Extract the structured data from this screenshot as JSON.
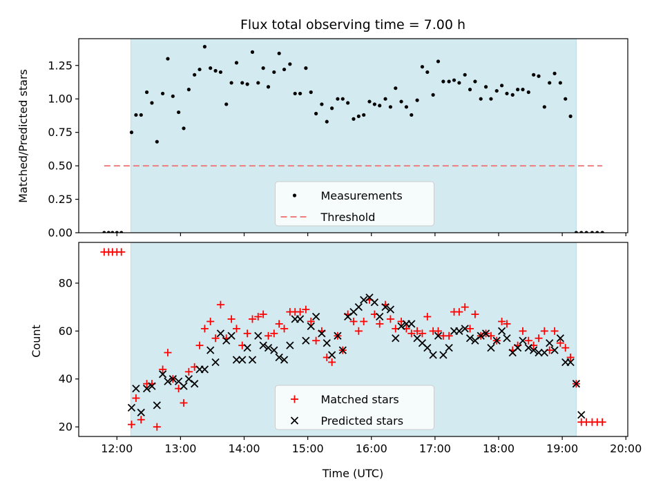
{
  "chart_data": [
    {
      "type": "scatter",
      "title": "Flux total observing time = 7.00 h",
      "xlabel": "",
      "ylabel": "Matched/Predicted stars",
      "ylim": [
        0,
        1.45
      ],
      "yticks": [
        0.0,
        0.25,
        0.5,
        0.75,
        1.0,
        1.25
      ],
      "ytick_labels": [
        "0.00",
        "0.25",
        "0.50",
        "0.75",
        "1.00",
        "1.25"
      ],
      "xlim_hours": [
        11.4,
        20.03
      ],
      "shaded_interval_hours": [
        12.22,
        19.22
      ],
      "shade_color": "#d3eaf1",
      "legend_position": "lower center",
      "legend": [
        {
          "label": "Measurements",
          "marker": "dot",
          "color": "#000000"
        },
        {
          "label": "Threshold",
          "marker": "dashed-line",
          "color": "#f07c7c"
        }
      ],
      "threshold": {
        "value": 0.5,
        "x_range_hours": [
          11.8,
          19.63
        ],
        "color": "#f07c7c"
      },
      "series": [
        {
          "name": "Measurements",
          "color": "#000000",
          "x_hours": [
            11.8,
            11.87,
            11.93,
            12.0,
            12.07,
            12.23,
            12.3,
            12.38,
            12.47,
            12.55,
            12.63,
            12.72,
            12.8,
            12.88,
            12.97,
            13.05,
            13.13,
            13.22,
            13.3,
            13.38,
            13.47,
            13.55,
            13.63,
            13.72,
            13.8,
            13.88,
            13.97,
            14.05,
            14.13,
            14.22,
            14.3,
            14.38,
            14.47,
            14.55,
            14.63,
            14.72,
            14.8,
            14.88,
            14.97,
            15.05,
            15.13,
            15.22,
            15.3,
            15.38,
            15.47,
            15.55,
            15.63,
            15.72,
            15.8,
            15.88,
            15.97,
            16.05,
            16.13,
            16.22,
            16.3,
            16.38,
            16.47,
            16.55,
            16.63,
            16.72,
            16.8,
            16.88,
            16.97,
            17.05,
            17.13,
            17.22,
            17.3,
            17.38,
            17.47,
            17.55,
            17.63,
            17.72,
            17.8,
            17.88,
            17.97,
            18.05,
            18.13,
            18.22,
            18.3,
            18.38,
            18.47,
            18.55,
            18.63,
            18.72,
            18.8,
            18.88,
            18.97,
            19.05,
            19.13,
            19.22,
            19.3,
            19.38,
            19.47,
            19.55,
            19.63
          ],
          "y": [
            0.0,
            0.0,
            0.0,
            0.0,
            0.0,
            0.75,
            0.88,
            0.88,
            1.05,
            0.97,
            0.68,
            1.04,
            1.3,
            1.02,
            0.9,
            0.78,
            1.07,
            1.18,
            1.22,
            1.39,
            1.23,
            1.21,
            1.2,
            0.96,
            1.12,
            1.27,
            1.12,
            1.11,
            1.35,
            1.12,
            1.23,
            1.09,
            1.2,
            1.34,
            1.22,
            1.26,
            1.04,
            1.04,
            1.23,
            1.05,
            0.89,
            0.96,
            0.83,
            0.93,
            1.0,
            1.0,
            0.97,
            0.85,
            0.87,
            0.88,
            0.98,
            0.96,
            0.95,
            1.0,
            0.94,
            1.08,
            0.98,
            0.94,
            0.88,
            0.99,
            1.24,
            1.2,
            1.03,
            1.28,
            1.13,
            1.13,
            1.14,
            1.12,
            1.18,
            1.07,
            1.13,
            1.0,
            1.09,
            1.0,
            1.06,
            1.1,
            1.04,
            1.03,
            1.07,
            1.07,
            1.05,
            1.18,
            1.17,
            0.94,
            1.12,
            1.19,
            1.12,
            1.0,
            0.87,
            0.0,
            0.0,
            0.0,
            0.0,
            0.0,
            0.0
          ]
        }
      ]
    },
    {
      "type": "scatter",
      "title": "",
      "xlabel": "Time (UTC)",
      "ylabel": "Count",
      "ylim": [
        16,
        97
      ],
      "yticks": [
        20,
        40,
        60,
        80
      ],
      "ytick_labels": [
        "20",
        "40",
        "60",
        "80"
      ],
      "xlim_hours": [
        11.4,
        20.03
      ],
      "xticks_hours": [
        12,
        13,
        14,
        15,
        16,
        17,
        18,
        19,
        20
      ],
      "xtick_labels": [
        "12:00",
        "13:00",
        "14:00",
        "15:00",
        "16:00",
        "17:00",
        "18:00",
        "19:00",
        "20:00"
      ],
      "shaded_interval_hours": [
        12.22,
        19.22
      ],
      "shade_color": "#d3eaf1",
      "legend_position": "lower center",
      "legend": [
        {
          "label": "Matched stars",
          "marker": "plus",
          "color": "#ff0000"
        },
        {
          "label": "Predicted stars",
          "marker": "x",
          "color": "#000000"
        }
      ],
      "series": [
        {
          "name": "Matched stars",
          "color": "#ff0000",
          "x_hours": [
            11.8,
            11.87,
            11.93,
            12.0,
            12.07,
            12.23,
            12.3,
            12.38,
            12.47,
            12.55,
            12.63,
            12.72,
            12.8,
            12.88,
            12.97,
            13.05,
            13.13,
            13.22,
            13.3,
            13.38,
            13.47,
            13.55,
            13.63,
            13.72,
            13.8,
            13.88,
            13.97,
            14.05,
            14.13,
            14.22,
            14.3,
            14.38,
            14.47,
            14.55,
            14.63,
            14.72,
            14.8,
            14.88,
            14.97,
            15.05,
            15.13,
            15.22,
            15.3,
            15.38,
            15.47,
            15.55,
            15.63,
            15.72,
            15.8,
            15.88,
            15.97,
            16.05,
            16.13,
            16.22,
            16.3,
            16.38,
            16.47,
            16.55,
            16.63,
            16.72,
            16.8,
            16.88,
            16.97,
            17.05,
            17.13,
            17.22,
            17.3,
            17.38,
            17.47,
            17.55,
            17.63,
            17.72,
            17.8,
            17.88,
            17.97,
            18.05,
            18.13,
            18.22,
            18.3,
            18.38,
            18.47,
            18.55,
            18.63,
            18.72,
            18.8,
            18.88,
            18.97,
            19.05,
            19.13,
            19.22,
            19.3,
            19.38,
            19.47,
            19.55,
            19.63
          ],
          "y": [
            93,
            93,
            93,
            93,
            93,
            21,
            32,
            23,
            38,
            38,
            20,
            44,
            51,
            40,
            36,
            30,
            43,
            45,
            54,
            61,
            64,
            57,
            71,
            57,
            65,
            61,
            54,
            59,
            65,
            66,
            67,
            58,
            59,
            63,
            61,
            68,
            68,
            68,
            69,
            64,
            56,
            60,
            49,
            47,
            58,
            52,
            67,
            64,
            60,
            64,
            73,
            67,
            63,
            71,
            65,
            61,
            64,
            61,
            59,
            60,
            59,
            66,
            60,
            60,
            58,
            58,
            68,
            68,
            70,
            61,
            67,
            58,
            59,
            58,
            56,
            64,
            63,
            52,
            54,
            60,
            56,
            54,
            57,
            60,
            52,
            60,
            55,
            53,
            49,
            38,
            22,
            22,
            22,
            22,
            22
          ]
        },
        {
          "name": "Predicted stars",
          "color": "#000000",
          "x_hours": [
            12.23,
            12.3,
            12.38,
            12.47,
            12.55,
            12.63,
            12.72,
            12.8,
            12.88,
            12.97,
            13.05,
            13.13,
            13.22,
            13.3,
            13.38,
            13.47,
            13.55,
            13.63,
            13.72,
            13.8,
            13.88,
            13.97,
            14.05,
            14.13,
            14.22,
            14.3,
            14.38,
            14.47,
            14.55,
            14.63,
            14.72,
            14.8,
            14.88,
            14.97,
            15.05,
            15.13,
            15.22,
            15.3,
            15.38,
            15.47,
            15.55,
            15.63,
            15.72,
            15.8,
            15.88,
            15.97,
            16.05,
            16.13,
            16.22,
            16.3,
            16.38,
            16.47,
            16.55,
            16.63,
            16.72,
            16.8,
            16.88,
            16.97,
            17.05,
            17.13,
            17.22,
            17.3,
            17.38,
            17.47,
            17.55,
            17.63,
            17.72,
            17.8,
            17.88,
            17.97,
            18.05,
            18.13,
            18.22,
            18.3,
            18.38,
            18.47,
            18.55,
            18.63,
            18.72,
            18.8,
            18.88,
            18.97,
            19.05,
            19.13,
            19.22,
            19.3
          ],
          "y": [
            28,
            36,
            26,
            36,
            37,
            29,
            42,
            39,
            40,
            39,
            37,
            40,
            38,
            44,
            44,
            52,
            47,
            59,
            56,
            58,
            48,
            48,
            53,
            48,
            58,
            54,
            53,
            52,
            49,
            48,
            54,
            65,
            65,
            56,
            62,
            66,
            59,
            55,
            50,
            58,
            52,
            66,
            68,
            70,
            73,
            74,
            72,
            66,
            70,
            69,
            57,
            62,
            63,
            63,
            57,
            55,
            53,
            50,
            58,
            50,
            53,
            60,
            60,
            61,
            57,
            56,
            58,
            59,
            53,
            56,
            60,
            57,
            51,
            53,
            56,
            53,
            52,
            51,
            51,
            55,
            52,
            57,
            47,
            47,
            38,
            25
          ]
        }
      ]
    }
  ]
}
